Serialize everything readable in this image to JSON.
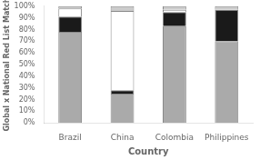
{
  "chart_data": {
    "type": "bar",
    "stacked": true,
    "grid": false,
    "xlabel": "Country",
    "ylabel": "Global x National Red List Match",
    "categories": [
      "Brazil",
      "China",
      "Colombia",
      "Philippines"
    ],
    "series": [
      {
        "color": "#aaaaaa",
        "values": [
          78,
          25,
          83,
          70
        ]
      },
      {
        "color": "#1a1a1a",
        "values": [
          13,
          3,
          12,
          27
        ]
      },
      {
        "color": "#ffffff",
        "values": [
          7,
          68,
          2,
          0
        ]
      },
      {
        "color": "#cccccc",
        "values": [
          2,
          4,
          3,
          3
        ]
      }
    ],
    "ylim": [
      0,
      100
    ],
    "yticks": [
      {
        "value": 0,
        "label": "0%"
      },
      {
        "value": 10,
        "label": "10%"
      },
      {
        "value": 20,
        "label": "20%"
      },
      {
        "value": 30,
        "label": "30%"
      },
      {
        "value": 40,
        "label": "40%"
      },
      {
        "value": 50,
        "label": "50%"
      },
      {
        "value": 60,
        "label": "60%"
      },
      {
        "value": 70,
        "label": "70%"
      },
      {
        "value": 80,
        "label": "80%"
      },
      {
        "value": 90,
        "label": "90%"
      },
      {
        "value": 100,
        "label": "100%"
      }
    ]
  }
}
